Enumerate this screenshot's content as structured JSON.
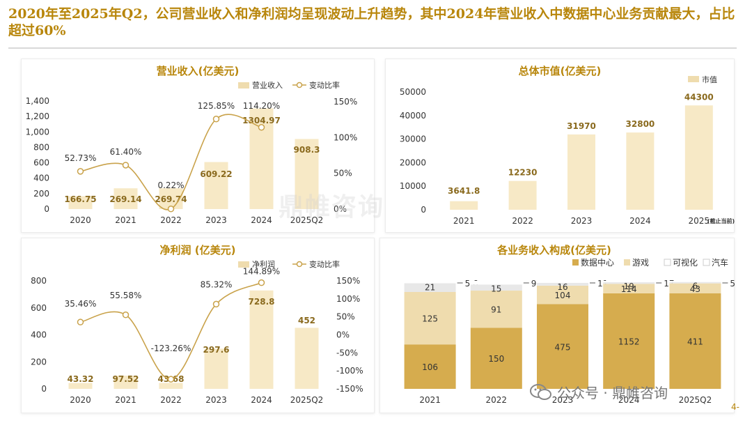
{
  "page": {
    "title": "2020年至2025年Q2，公司营业收入和净利润均呈现波动上升趋势，其中2024年营业收入中数据中心业务贡献最大，占比超过60%",
    "watermark": "鼎帷咨询",
    "wechat_text": "公众号 · 鼎帷咨询",
    "page_number": "4-"
  },
  "colors": {
    "gold": "#b8860b",
    "bar_light": "#f7e9c6",
    "bar_mid": "#efdcae",
    "bar_dark": "#d6ac4e",
    "line": "#c9a24a",
    "grey": "#e8e8e8"
  },
  "chart_data": [
    {
      "id": "revenue",
      "type": "bar",
      "title": "营业收入(亿美元)",
      "categories": [
        "2020",
        "2021",
        "2022",
        "2023",
        "2024",
        "2025Q2"
      ],
      "series": [
        {
          "name": "营业收入",
          "values": [
            166.75,
            269.14,
            269.74,
            609.22,
            1304.97,
            908.3
          ],
          "labels": [
            "166.75",
            "269.14",
            "269.74",
            "609.22",
            "1304.97",
            "908.3"
          ]
        }
      ],
      "line_series": {
        "name": "变动比率",
        "values": [
          52.73,
          61.4,
          0.22,
          125.85,
          114.2
        ],
        "labels": [
          "52.73%",
          "61.40%",
          "0.22%",
          "125.85%",
          "114.20%"
        ]
      },
      "yticks_left": [
        "0",
        "200",
        "400",
        "600",
        "800",
        "1,000",
        "1,200",
        "1,400"
      ],
      "ylim_left": [
        0,
        1400
      ],
      "yticks_right": [
        "0%",
        "50%",
        "100%",
        "150%"
      ],
      "ylim_right": [
        0,
        150
      ],
      "legend": [
        "营业收入",
        "变动比率"
      ]
    },
    {
      "id": "marketcap",
      "type": "bar",
      "title": "总体市值(亿美元)",
      "categories": [
        "2021",
        "2022",
        "2023",
        "2024",
        "2025"
      ],
      "series": [
        {
          "name": "市值",
          "values": [
            3641.8,
            12230,
            31970,
            32800,
            44300
          ],
          "labels": [
            "3641.8",
            "12230",
            "31970",
            "32800",
            "44300"
          ]
        }
      ],
      "yticks_left": [
        "0",
        "10000",
        "20000",
        "30000",
        "40000",
        "50000"
      ],
      "ylim_left": [
        0,
        50000
      ],
      "legend": [
        "市值"
      ],
      "note": "(截止当前)"
    },
    {
      "id": "netprofit",
      "type": "bar",
      "title": "净利润 (亿美元)",
      "categories": [
        "2020",
        "2021",
        "2022",
        "2023",
        "2024",
        "2025Q2"
      ],
      "series": [
        {
          "name": "净利润",
          "values": [
            43.32,
            97.52,
            43.68,
            297.6,
            728.8,
            452
          ],
          "labels": [
            "43.32",
            "97.52",
            "43.68",
            "297.6",
            "728.8",
            "452"
          ]
        }
      ],
      "line_series": {
        "name": "变动比率",
        "values": [
          35.46,
          55.58,
          -123.26,
          85.32,
          144.89
        ],
        "labels": [
          "35.46%",
          "55.58%",
          "-123.26%",
          "85.32%",
          "144.89%"
        ]
      },
      "yticks_left": [
        "0",
        "200",
        "400",
        "600",
        "800"
      ],
      "ylim_left": [
        0,
        800
      ],
      "yticks_right": [
        "-150%",
        "-100%",
        "-50%",
        "0%",
        "50%",
        "100%",
        "150%"
      ],
      "ylim_right": [
        -150,
        150
      ],
      "legend": [
        "净利润",
        "变动比率"
      ]
    },
    {
      "id": "segments",
      "type": "bar",
      "stacked": true,
      "title": "各业务收入构成(亿美元)",
      "categories": [
        "2021",
        "2022",
        "2023",
        "2024",
        "2025Q2"
      ],
      "series": [
        {
          "name": "数据中心",
          "values": [
            106,
            150,
            475,
            1152,
            411
          ]
        },
        {
          "name": "游戏",
          "values": [
            125,
            91,
            104,
            114,
            43
          ]
        },
        {
          "name": "可视化",
          "values": [
            21,
            15,
            16,
            19,
            6
          ]
        },
        {
          "name": "汽车",
          "values": [
            5.6,
            9,
            11,
            17,
            5
          ]
        }
      ],
      "labels": {
        "数据中心": [
          "106",
          "150",
          "475",
          "1152",
          "411"
        ],
        "游戏": [
          "125",
          "91",
          "104",
          "114",
          "43"
        ],
        "可视化": [
          "21",
          "15",
          "16",
          "19",
          "6"
        ],
        "汽车": [
          "5.6",
          "9",
          "11",
          "17",
          "5"
        ]
      },
      "legend": [
        "数据中心",
        "游戏",
        "可视化",
        "汽车"
      ]
    }
  ]
}
